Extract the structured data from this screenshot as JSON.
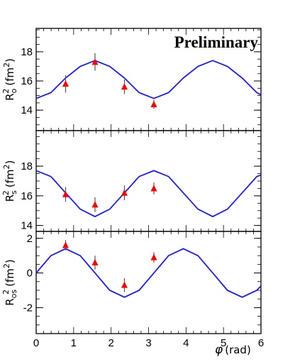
{
  "chart_data": [
    {
      "type": "line",
      "annotation": "Preliminary",
      "ylabel": {
        "main": "R",
        "sub": "o",
        "sup": "2",
        "unit": "(fm",
        "unit_sup": "2",
        "unit_close": ")"
      },
      "ylim": [
        12.6,
        19.6
      ],
      "yticks": [
        14,
        16,
        18
      ],
      "ytick_labels": [
        "14",
        "16",
        "18"
      ],
      "curve_color": "#1a1aff",
      "marker_color": "#ff0000",
      "curve": {
        "x": [
          0.0,
          0.393,
          0.785,
          1.178,
          1.571,
          1.963,
          2.356,
          2.749,
          3.142,
          3.534,
          3.927,
          4.32,
          4.712,
          5.105,
          5.498,
          5.89,
          6.0
        ],
        "y": [
          14.8,
          15.2,
          16.2,
          17.0,
          17.4,
          17.0,
          16.2,
          15.2,
          14.8,
          15.2,
          16.2,
          17.0,
          17.4,
          17.0,
          16.2,
          15.2,
          15.05
        ]
      },
      "points": {
        "x": [
          0.785,
          1.571,
          2.356,
          3.142
        ],
        "y": [
          15.8,
          17.3,
          15.6,
          14.4
        ],
        "err": [
          0.6,
          0.6,
          0.5,
          0.3
        ]
      }
    },
    {
      "type": "line",
      "ylabel": {
        "main": "R",
        "sub": "s",
        "sup": "2",
        "unit": "(fm",
        "unit_sup": "2",
        "unit_close": ")"
      },
      "ylim": [
        13.6,
        20.4
      ],
      "yticks": [
        14,
        16,
        18
      ],
      "ytick_labels": [
        "14",
        "16",
        "18"
      ],
      "curve_color": "#1a1aff",
      "marker_color": "#ff0000",
      "curve": {
        "x": [
          0.0,
          0.393,
          0.785,
          1.178,
          1.571,
          1.963,
          2.356,
          2.749,
          3.142,
          3.534,
          3.927,
          4.32,
          4.712,
          5.105,
          5.498,
          5.89,
          6.0
        ],
        "y": [
          17.7,
          17.3,
          16.2,
          15.1,
          14.6,
          15.1,
          16.2,
          17.3,
          17.7,
          17.3,
          16.2,
          15.1,
          14.6,
          15.1,
          16.2,
          17.3,
          17.4
        ]
      },
      "points": {
        "x": [
          0.785,
          1.571,
          2.356,
          3.142
        ],
        "y": [
          16.1,
          15.4,
          16.2,
          16.5
        ],
        "err": [
          0.5,
          0.5,
          0.5,
          0.4
        ]
      }
    },
    {
      "type": "line",
      "ylabel": {
        "main": "R",
        "sub": "os",
        "sup": "2",
        "unit": "(fm",
        "unit_sup": "2",
        "unit_close": ")"
      },
      "ylim": [
        -3.5,
        2.4
      ],
      "yticks": [
        -2,
        0,
        2
      ],
      "ytick_labels": [
        "-2",
        "0",
        "2"
      ],
      "xlim": [
        0,
        6
      ],
      "xticks": [
        0,
        1,
        2,
        3,
        4,
        5,
        6
      ],
      "xtick_labels": [
        "0",
        "1",
        "2",
        "3",
        "4",
        "5",
        "6"
      ],
      "xlabel": {
        "main": "φ",
        "unit": "(rad)"
      },
      "curve_color": "#1a1aff",
      "marker_color": "#ff0000",
      "curve": {
        "x": [
          0.0,
          0.393,
          0.785,
          1.178,
          1.571,
          1.963,
          2.356,
          2.749,
          3.142,
          3.534,
          3.927,
          4.32,
          4.712,
          5.105,
          5.498,
          5.89,
          6.0
        ],
        "y": [
          0.0,
          1.0,
          1.4,
          1.0,
          0.0,
          -1.0,
          -1.4,
          -1.0,
          0.0,
          1.0,
          1.4,
          1.0,
          0.0,
          -1.0,
          -1.4,
          -1.0,
          -0.75
        ]
      },
      "points": {
        "x": [
          0.785,
          1.571,
          2.356,
          3.142
        ],
        "y": [
          1.6,
          0.6,
          -0.7,
          0.9
        ],
        "err": [
          0.3,
          0.4,
          0.4,
          0.3
        ]
      }
    }
  ]
}
